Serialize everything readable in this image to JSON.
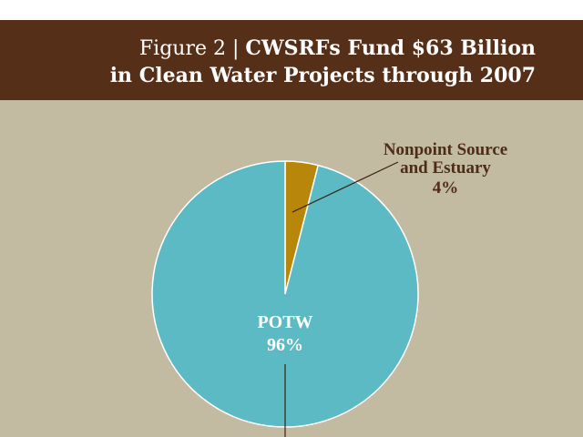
{
  "title": {
    "prefix": "Figure 2 | ",
    "line1": "CWSRFs Fund $63 Billion",
    "line2": "in Clean Water Projects through 2007"
  },
  "chart_data": {
    "type": "pie",
    "title": "Figure 2 | CWSRFs Fund $63 Billion in Clean Water Projects through 2007",
    "slices": [
      {
        "label": "POTW",
        "value": 96,
        "value_label": "96%",
        "color": "#5bbac4"
      },
      {
        "label": "Nonpoint Source and Estuary",
        "label_lines": [
          "Nonpoint Source",
          "and Estuary"
        ],
        "value": 4,
        "value_label": "4%",
        "color": "#b8860b"
      }
    ]
  },
  "colors": {
    "header": "#552f18",
    "background": "#c2bba2",
    "label_text": "#4e2c17"
  }
}
